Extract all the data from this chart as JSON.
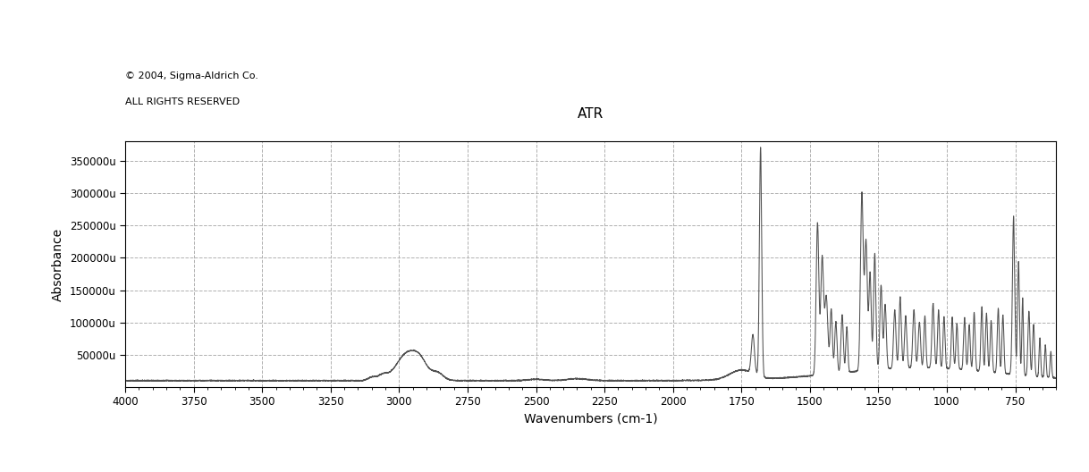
{
  "title": "ATR",
  "xlabel": "Wavenumbers (cm-1)",
  "ylabel": "Absorbance",
  "copyright_line1": "© 2004, Sigma-Aldrich Co.",
  "copyright_line2": "ALL RIGHTS RESERVED",
  "xlim": [
    4000,
    600
  ],
  "ylim": [
    0,
    380000
  ],
  "yticks": [
    50000,
    100000,
    150000,
    200000,
    250000,
    300000,
    350000
  ],
  "ytick_labels": [
    "50000u",
    "100000u",
    "150000u",
    "200000u",
    "250000u",
    "300000u",
    "350000u"
  ],
  "xticks": [
    4000,
    3750,
    3500,
    3250,
    3000,
    2750,
    2500,
    2250,
    2000,
    1750,
    1500,
    1250,
    1000,
    750
  ],
  "background_color": "#ffffff",
  "line_color": "#505050",
  "grid_color": "#b0b0b0",
  "grid_style": "--"
}
